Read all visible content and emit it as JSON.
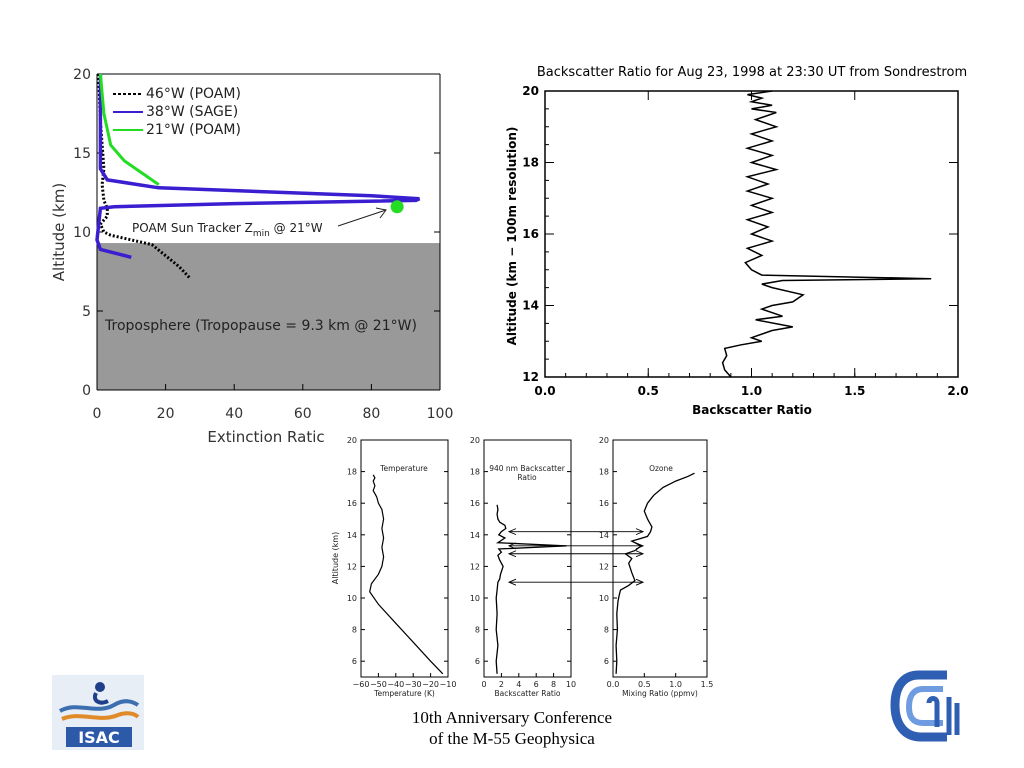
{
  "footer": {
    "line1": "10th Anniversary Conference",
    "line2": "of the M-55 Geophysica"
  },
  "logos": {
    "isac_text": "ISAC",
    "cnr_icon": "cnr-logo-icon"
  },
  "colors": {
    "poam46": "#000000",
    "sage38": "#3a1fd0",
    "poam21": "#22dd22",
    "troposphere": "#999999",
    "ozone_arrow": "#000000"
  },
  "chart_data": [
    {
      "id": "extinction",
      "type": "line",
      "xlabel": "Extinction Ratic",
      "ylabel": "Altitude (km)",
      "xlim": [
        0,
        100
      ],
      "ylim": [
        0,
        20
      ],
      "xticks": [
        "0",
        "20",
        "40",
        "60",
        "80",
        "100"
      ],
      "yticks": [
        "0",
        "5",
        "10",
        "15",
        "20"
      ],
      "legend": [
        {
          "label": "46°W (POAM)",
          "style": "dashed-black"
        },
        {
          "label": "38°W (SAGE)",
          "style": "solid-blue"
        },
        {
          "label": "21°W (POAM)",
          "style": "solid-green"
        }
      ],
      "series": [
        {
          "name": "46°W (POAM)",
          "x": [
            0.5,
            1,
            2,
            1.5,
            2,
            3,
            3,
            1,
            2,
            4,
            10,
            16,
            20,
            24,
            27
          ],
          "y": [
            20,
            17,
            14,
            13,
            12,
            11.5,
            11,
            10.5,
            10,
            9.8,
            9.5,
            9.2,
            8.5,
            7.8,
            7.1
          ]
        },
        {
          "name": "38°W (SAGE)",
          "x": [
            1,
            1,
            1,
            3,
            18,
            80,
            94,
            93,
            40,
            5,
            1,
            0.5,
            0,
            1,
            10
          ],
          "y": [
            20,
            16,
            14,
            13.3,
            12.8,
            12.3,
            12.1,
            12,
            11.8,
            11.6,
            11.5,
            10.5,
            9.5,
            8.9,
            8.4
          ]
        },
        {
          "name": "21°W (POAM)",
          "x": [
            1,
            2,
            4,
            8,
            14,
            18
          ],
          "y": [
            20,
            17.5,
            15.5,
            14.5,
            13.6,
            13
          ]
        }
      ],
      "marker": {
        "x": 87.5,
        "y": 11.6
      },
      "annotation": "POAM Sun Tracker Zₘᵢₙ @ 21°W",
      "annotation_main": "POAM Sun Tracker Z",
      "annotation_sub": "min",
      "annotation_tail": " @ 21°W",
      "band": {
        "ymin": 0,
        "ymax": 9.3,
        "label": "Troposphere (Tropopause = 9.3 km @ 21°W)"
      }
    },
    {
      "id": "backscatter-sondrestrom",
      "type": "line",
      "title": "Backscatter Ratio for Aug 23, 1998 at 23:30 UT from Sondrestrom",
      "xlabel": "Backscatter Ratio",
      "ylabel": "Altitude (km − 100m resolution)",
      "xlim": [
        0,
        2
      ],
      "ylim": [
        12,
        20
      ],
      "xticks": [
        "0.0",
        "0.5",
        "1.0",
        "1.5",
        "2.0"
      ],
      "yticks": [
        "12",
        "14",
        "16",
        "18",
        "20"
      ],
      "series": [
        {
          "x": [
            0.9,
            0.87,
            0.86,
            0.88,
            0.87,
            0.95,
            1.05,
            1.0,
            1.1,
            1.2,
            1.02,
            1.15,
            1.05,
            1.1,
            1.2,
            1.25,
            1.1,
            1.05,
            1.15,
            1.87,
            1.05,
            1.0,
            0.97,
            1.05,
            0.98,
            1.1,
            1.0,
            1.08,
            0.98,
            1.1,
            1.0,
            1.1,
            0.98,
            1.08,
            0.98,
            1.12,
            1.0,
            1.1,
            0.98,
            1.1,
            1.0,
            1.12,
            1.02,
            1.12,
            1.0,
            1.1,
            1.0,
            1.05,
            0.98,
            1.1
          ],
          "y": [
            12.0,
            12.2,
            12.4,
            12.6,
            12.8,
            12.9,
            13.0,
            13.1,
            13.3,
            13.4,
            13.6,
            13.7,
            13.9,
            14.0,
            14.1,
            14.3,
            14.5,
            14.6,
            14.7,
            14.75,
            14.85,
            15.0,
            15.2,
            15.4,
            15.6,
            15.8,
            16.0,
            16.2,
            16.4,
            16.6,
            16.8,
            17.0,
            17.2,
            17.4,
            17.6,
            17.8,
            18.0,
            18.2,
            18.4,
            18.6,
            18.8,
            19.0,
            19.2,
            19.4,
            19.5,
            19.6,
            19.7,
            19.8,
            19.9,
            20.0
          ]
        }
      ]
    },
    {
      "id": "temperature",
      "type": "line",
      "title": "Temperature",
      "xlabel": "Temperature (K)",
      "ylabel": "Altitude (km)",
      "xlim": [
        -60,
        -10
      ],
      "ylim": [
        5,
        20
      ],
      "xticks": [
        "−60",
        "−50",
        "−40",
        "−30",
        "−20",
        "−10"
      ],
      "yticks": [
        "6",
        "8",
        "10",
        "12",
        "14",
        "16",
        "18",
        "20"
      ],
      "series": [
        {
          "x": [
            -13,
            -20,
            -30,
            -40,
            -50,
            -55,
            -54,
            -50,
            -48,
            -47,
            -48,
            -47,
            -48,
            -47,
            -48,
            -50,
            -51,
            -53,
            -52,
            -53,
            -52,
            -53
          ],
          "y": [
            5.2,
            6.0,
            7.2,
            8.4,
            9.6,
            10.4,
            10.9,
            11.5,
            12.0,
            12.6,
            13.2,
            13.8,
            14.4,
            15.0,
            15.6,
            16.0,
            16.4,
            16.8,
            17.1,
            17.4,
            17.6,
            17.8
          ]
        }
      ]
    },
    {
      "id": "backscatter-940",
      "type": "line",
      "title": "940 nm Backscatter Ratio",
      "title_l1": "940 nm Backscatter",
      "title_l2": "Ratio",
      "xlabel": "Backscatter Ratio",
      "xlim": [
        0,
        10
      ],
      "ylim": [
        5,
        20
      ],
      "xticks": [
        "0",
        "2",
        "4",
        "6",
        "8",
        "10"
      ],
      "yticks": [
        "6",
        "8",
        "10",
        "12",
        "14",
        "16",
        "18",
        "20"
      ],
      "series": [
        {
          "x": [
            1.5,
            1.4,
            1.6,
            1.4,
            1.5,
            1.4,
            1.5,
            1.6,
            1.8,
            1.9,
            2.2,
            1.8,
            1.6,
            2.0,
            1.7,
            9.5,
            1.6,
            2.4,
            1.7,
            2.0,
            2.5,
            2.4,
            1.8,
            1.6,
            1.5,
            1.6,
            1.5
          ],
          "y": [
            5.2,
            6.0,
            7.0,
            8.0,
            9.0,
            10.0,
            10.5,
            11.0,
            11.2,
            11.5,
            12.0,
            12.4,
            12.7,
            12.9,
            13.1,
            13.3,
            13.5,
            13.8,
            14.0,
            14.2,
            14.4,
            14.6,
            14.8,
            15.0,
            15.3,
            15.6,
            15.9
          ]
        }
      ]
    },
    {
      "id": "ozone",
      "type": "line",
      "title": "Ozone",
      "xlabel": "Mixing Ratio (ppmv)",
      "xlim": [
        0,
        1.5
      ],
      "ylim": [
        5,
        20
      ],
      "xticks": [
        "0.0",
        "0.5",
        "1.0",
        "1.5"
      ],
      "yticks": [
        "6",
        "8",
        "10",
        "12",
        "14",
        "16",
        "18",
        "20"
      ],
      "series": [
        {
          "x": [
            0.05,
            0.06,
            0.05,
            0.07,
            0.06,
            0.08,
            0.1,
            0.12,
            0.25,
            0.35,
            0.3,
            0.25,
            0.3,
            0.2,
            0.35,
            0.45,
            0.3,
            0.55,
            0.6,
            0.62,
            0.55,
            0.5,
            0.55,
            0.65,
            0.8,
            1.0,
            1.2,
            1.3
          ],
          "y": [
            5.2,
            6.0,
            7.0,
            8.0,
            9.0,
            9.8,
            10.2,
            10.5,
            10.8,
            11.1,
            11.6,
            12.2,
            12.5,
            12.8,
            13.0,
            13.3,
            13.6,
            13.9,
            14.2,
            14.5,
            15.0,
            15.5,
            16.0,
            16.5,
            17.0,
            17.4,
            17.7,
            17.9
          ]
        }
      ],
      "arrows_y": [
        14.2,
        13.3,
        12.8,
        11.0
      ]
    }
  ]
}
